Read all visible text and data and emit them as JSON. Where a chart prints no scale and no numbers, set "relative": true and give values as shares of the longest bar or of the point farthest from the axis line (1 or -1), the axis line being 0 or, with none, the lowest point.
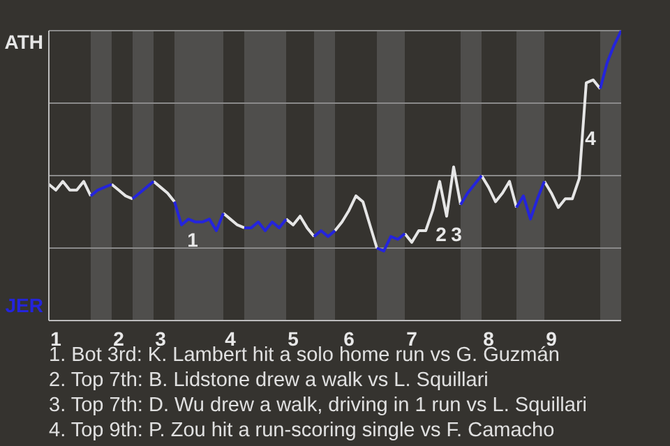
{
  "chart_data": {
    "type": "line",
    "relative": true,
    "categories": [
      null,
      "1",
      null,
      null,
      null,
      null,
      null,
      null,
      null,
      null,
      "2",
      null,
      null,
      null,
      null,
      null,
      "3",
      null,
      null,
      null,
      null,
      null,
      null,
      null,
      null,
      null,
      "4",
      null,
      null,
      null,
      null,
      null,
      null,
      null,
      null,
      "5",
      null,
      null,
      null,
      null,
      null,
      null,
      null,
      "6",
      null,
      null,
      null,
      null,
      null,
      null,
      null,
      null,
      "7",
      null,
      null,
      null,
      null,
      null,
      null,
      null,
      null,
      null,
      null,
      "8",
      null,
      null,
      null,
      null,
      null,
      null,
      null,
      null,
      "9",
      null,
      null,
      null,
      null,
      null,
      null,
      null,
      null,
      null,
      null
    ],
    "series": [
      {
        "color": "#e6e6e6",
        "values": [
          0.47,
          0.45,
          0.48,
          0.45,
          0.45,
          0.48,
          0.43,
          null,
          null,
          0.47,
          0.45,
          0.43,
          0.42,
          null,
          null,
          0.48,
          0.46,
          0.44,
          0.41,
          null,
          null,
          null,
          null,
          null,
          null,
          0.37,
          0.35,
          0.33,
          0.32,
          null,
          null,
          null,
          null,
          null,
          0.35,
          0.33,
          0.36,
          0.32,
          0.29,
          null,
          null,
          0.31,
          0.34,
          0.38,
          0.43,
          0.41,
          0.33,
          0.25,
          null,
          null,
          null,
          0.3,
          0.27,
          0.31,
          0.31,
          0.38,
          0.48,
          0.36,
          0.53,
          0.4,
          null,
          null,
          0.5,
          0.46,
          0.41,
          0.44,
          0.48,
          0.39,
          null,
          null,
          null,
          0.48,
          0.44,
          0.39,
          0.42,
          0.42,
          0.49,
          0.82,
          0.83,
          0.8,
          null,
          null,
          null
        ]
      },
      {
        "color": "#2424dc",
        "values": [
          null,
          null,
          null,
          null,
          null,
          null,
          0.43,
          0.45,
          0.46,
          0.47,
          null,
          null,
          0.42,
          0.44,
          0.46,
          0.48,
          null,
          null,
          0.41,
          0.33,
          0.35,
          0.34,
          0.34,
          0.35,
          0.31,
          0.37,
          null,
          null,
          0.32,
          0.32,
          0.34,
          0.31,
          0.34,
          0.32,
          0.35,
          null,
          null,
          null,
          0.29,
          0.31,
          0.29,
          0.31,
          null,
          null,
          null,
          null,
          null,
          0.25,
          0.24,
          0.29,
          0.28,
          0.3,
          null,
          null,
          null,
          null,
          null,
          null,
          null,
          0.4,
          0.44,
          0.47,
          0.5,
          null,
          null,
          null,
          null,
          0.39,
          0.43,
          0.35,
          0.42,
          0.48,
          null,
          null,
          null,
          null,
          null,
          null,
          null,
          0.8,
          0.89,
          0.95,
          1
        ]
      }
    ],
    "legend": false,
    "marker": "none",
    "line_style": "solid",
    "ref_lines": [
      {
        "axis": "y",
        "value": 0.25,
        "color": "#8a8a8a"
      },
      {
        "axis": "y",
        "value": 0.5,
        "color": "#8a8a8a"
      },
      {
        "axis": "y",
        "value": 0.75,
        "color": "#8a8a8a"
      },
      {
        "axis": "y",
        "value": 1,
        "color": "#8a8a8a"
      }
    ],
    "annotations": [
      "ATH",
      "JER",
      "1",
      "2",
      "3",
      "4",
      "1. Bot 3rd: K. Lambert hit a solo home run vs G. Guzmán",
      "2. Top 7th: B. Lidstone drew a walk vs L. Squillari",
      "3. Top 7th: D. Wu drew a walk, driving in 1 run vs L. Squillari",
      "4. Top 9th: P. Zou hit a run-scoring single vs F. Camacho"
    ]
  }
}
